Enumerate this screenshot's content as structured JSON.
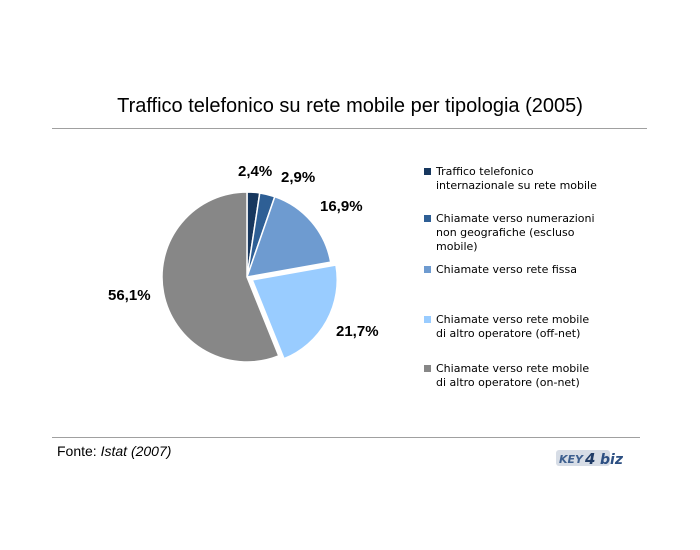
{
  "title": "Traffico telefonico su rete mobile per tipologia (2005)",
  "source": {
    "label": "Fonte: ",
    "ref": "Istat (2007)"
  },
  "logo": {
    "text_left": "KEY",
    "digit": "4",
    "text_right": "biz"
  },
  "chart_data": {
    "type": "pie",
    "title": "Traffico telefonico su rete mobile per tipologia (2005)",
    "start_angle_deg": 0,
    "direction": "clockwise",
    "slices": [
      {
        "label": "Traffico telefonico\ninternazionale su rete mobile",
        "value": 2.4,
        "display": "2,4%",
        "color": "#17375e",
        "exploded": false
      },
      {
        "label": "Chiamate verso numerazioni\nnon geografiche (escluso\nmobile)",
        "value": 2.9,
        "display": "2,9%",
        "color": "#2e5f95",
        "exploded": false
      },
      {
        "label": "Chiamate verso rete fissa",
        "value": 16.9,
        "display": "16,9%",
        "color": "#6e9bd0",
        "exploded": false
      },
      {
        "label": "Chiamate verso rete mobile\ndi altro operatore (off-net)",
        "value": 21.7,
        "display": "21,7%",
        "color": "#99ccff",
        "exploded": true
      },
      {
        "label": "Chiamate verso rete mobile\ndi altro operatore (on-net)",
        "value": 56.1,
        "display": "56,1%",
        "color": "#878787",
        "exploded": false
      }
    ],
    "legend_position": "right"
  }
}
